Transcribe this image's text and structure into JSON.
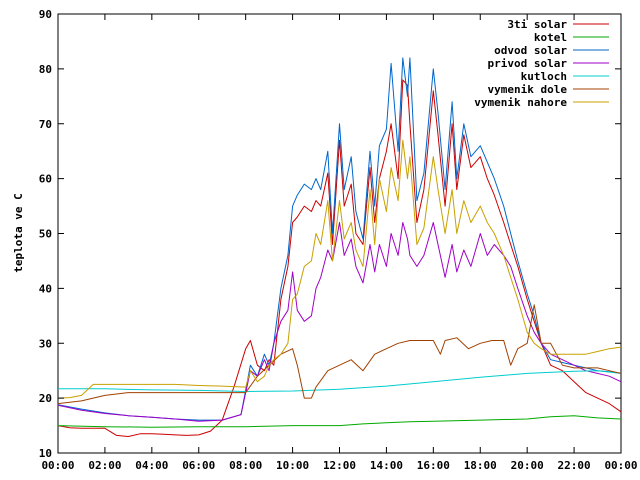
{
  "chart_data": {
    "type": "line",
    "title": "",
    "xlabel": "",
    "ylabel": "teplota ve C",
    "x_ticks": [
      "00:00",
      "02:00",
      "04:00",
      "06:00",
      "08:00",
      "10:00",
      "12:00",
      "14:00",
      "16:00",
      "18:00",
      "20:00",
      "22:00",
      "00:00"
    ],
    "xlim": [
      0,
      24
    ],
    "ylim": [
      10,
      90
    ],
    "y_ticks": [
      10,
      20,
      30,
      40,
      50,
      60,
      70,
      80,
      90
    ],
    "grid": false,
    "legend_position": "top-right",
    "series": [
      {
        "name": "3ti solar",
        "color": "#cc0000",
        "x": [
          0,
          0.5,
          1,
          1.5,
          2,
          2.5,
          3,
          3.5,
          4,
          4.5,
          5,
          5.5,
          6,
          6.5,
          7,
          7.5,
          8,
          8.2,
          8.5,
          8.8,
          9,
          9.2,
          9.5,
          9.8,
          10,
          10.2,
          10.5,
          10.8,
          11,
          11.2,
          11.5,
          11.7,
          12,
          12.2,
          12.5,
          12.7,
          13,
          13.3,
          13.5,
          13.7,
          14,
          14.2,
          14.5,
          14.7,
          14.9,
          15,
          15.3,
          15.6,
          16,
          16.2,
          16.5,
          16.8,
          17,
          17.3,
          17.6,
          18,
          18.3,
          18.6,
          19,
          19.3,
          19.6,
          20,
          20.3,
          20.6,
          21,
          21.5,
          22,
          22.5,
          23,
          23.5,
          24
        ],
        "y": [
          15,
          14.6,
          14.5,
          14.5,
          14.5,
          13.2,
          13,
          13.5,
          13.5,
          13.4,
          13.3,
          13.2,
          13.3,
          14,
          16,
          22,
          29,
          30.5,
          26,
          25,
          27,
          26,
          38,
          44,
          52,
          53,
          55,
          54,
          56,
          55,
          61,
          48,
          67,
          55,
          59,
          50,
          48,
          62,
          52,
          60,
          65,
          70,
          60,
          78,
          77,
          70,
          52,
          58,
          76,
          68,
          55,
          70,
          58,
          68,
          62,
          64,
          60,
          57,
          52,
          48,
          44,
          38,
          34,
          30,
          26,
          25,
          23,
          21,
          20,
          19,
          17.5
        ]
      },
      {
        "name": "kotel",
        "color": "#00aa00",
        "x": [
          0,
          2,
          4,
          6,
          8,
          10,
          12,
          13,
          14,
          15,
          16,
          18,
          20,
          21,
          22,
          23,
          24
        ],
        "y": [
          15,
          14.8,
          14.7,
          14.8,
          14.8,
          15,
          15,
          15.3,
          15.5,
          15.7,
          15.8,
          16,
          16.2,
          16.6,
          16.8,
          16.4,
          16.2
        ]
      },
      {
        "name": "odvod solar",
        "color": "#0066cc",
        "x": [
          0,
          1,
          2,
          3,
          4,
          5,
          6,
          7,
          7.8,
          8.2,
          8.5,
          8.8,
          9,
          9.2,
          9.5,
          9.8,
          10,
          10.2,
          10.5,
          10.8,
          11,
          11.2,
          11.5,
          11.7,
          12,
          12.2,
          12.5,
          12.7,
          13,
          13.3,
          13.5,
          13.7,
          14,
          14.2,
          14.5,
          14.7,
          14.9,
          15,
          15.3,
          15.6,
          16,
          16.2,
          16.5,
          16.8,
          17,
          17.3,
          17.6,
          18,
          18.3,
          18.6,
          19,
          19.3,
          19.6,
          20,
          20.3,
          20.6,
          21,
          21.5,
          22,
          22.5,
          23,
          23.5,
          24
        ],
        "y": [
          18.8,
          18,
          17.3,
          16.8,
          16.5,
          16.2,
          16,
          16,
          17,
          26,
          24,
          28,
          26,
          30,
          40,
          46,
          55,
          57,
          59,
          58,
          60,
          58,
          65,
          50,
          70,
          58,
          64,
          54,
          49,
          65,
          55,
          66,
          69,
          81,
          65,
          82,
          75,
          82,
          56,
          61,
          80,
          72,
          58,
          74,
          60,
          70,
          64,
          66,
          63,
          60,
          55,
          50,
          45,
          39,
          35,
          30,
          27,
          26.5,
          26,
          25.5,
          25,
          24.8,
          24.5
        ]
      },
      {
        "name": "privod solar",
        "color": "#a000c8",
        "x": [
          0,
          1,
          2,
          3,
          4,
          5,
          6,
          7,
          7.8,
          8.2,
          8.5,
          8.8,
          9,
          9.2,
          9.5,
          9.8,
          10,
          10.2,
          10.5,
          10.8,
          11,
          11.2,
          11.5,
          11.7,
          12,
          12.2,
          12.5,
          12.7,
          13,
          13.3,
          13.5,
          13.7,
          14,
          14.2,
          14.5,
          14.7,
          14.9,
          15,
          15.3,
          15.6,
          16,
          16.2,
          16.5,
          16.8,
          17,
          17.3,
          17.6,
          18,
          18.3,
          18.6,
          19,
          19.3,
          19.6,
          20,
          20.3,
          20.6,
          21,
          21.5,
          22,
          22.5,
          23,
          23.5,
          24
        ],
        "y": [
          18.7,
          17.8,
          17.2,
          16.8,
          16.5,
          16.2,
          15.8,
          16,
          17,
          25,
          24,
          27,
          25,
          30,
          34,
          36,
          43,
          36,
          34,
          35,
          40,
          42,
          47,
          45,
          52,
          46,
          49,
          44,
          41,
          48,
          43,
          48,
          44,
          50,
          46,
          52,
          49,
          46,
          44,
          46,
          52,
          48,
          42,
          48,
          43,
          47,
          44,
          50,
          46,
          48,
          46,
          44,
          40,
          35,
          32,
          30,
          28,
          27,
          26,
          25,
          24.5,
          24,
          23
        ]
      },
      {
        "name": "kutloch",
        "color": "#00cccc",
        "x": [
          0,
          2,
          4,
          6,
          8,
          10,
          12,
          14,
          16,
          18,
          20,
          22,
          23,
          24
        ],
        "y": [
          21.7,
          21.7,
          21.5,
          21.4,
          21.2,
          21.3,
          21.6,
          22.2,
          23,
          23.8,
          24.5,
          24.9,
          25,
          24.5
        ]
      },
      {
        "name": "vymenik dole",
        "color": "#a04000",
        "x": [
          0,
          1,
          2,
          3,
          4,
          5,
          6,
          7,
          8,
          8.5,
          9,
          9.5,
          10,
          10.2,
          10.5,
          10.8,
          11,
          11.5,
          12,
          12.5,
          13,
          13.5,
          14,
          14.5,
          15,
          15.5,
          16,
          16.3,
          16.5,
          17,
          17.5,
          18,
          18.5,
          19,
          19.3,
          19.6,
          20,
          20.3,
          20.6,
          21,
          21.5,
          22,
          22.5,
          23,
          23.5,
          24
        ],
        "y": [
          19,
          19.5,
          20.5,
          21,
          21,
          21,
          21,
          21,
          21,
          24,
          26,
          28,
          29,
          26,
          20,
          20,
          22,
          25,
          26,
          27,
          25,
          28,
          29,
          30,
          30.5,
          30.5,
          30.5,
          28,
          30.5,
          31,
          29,
          30,
          30.5,
          30.5,
          26,
          29,
          30,
          37,
          30,
          30,
          26,
          25.5,
          25.5,
          25.5,
          25,
          24.5
        ]
      },
      {
        "name": "vymenik nahore",
        "color": "#c8a000",
        "x": [
          0,
          0.5,
          1,
          1.5,
          2,
          3,
          4,
          5,
          6,
          7,
          8,
          8.2,
          8.5,
          8.8,
          9,
          9.2,
          9.5,
          9.8,
          10,
          10.2,
          10.5,
          10.8,
          11,
          11.2,
          11.5,
          11.7,
          12,
          12.2,
          12.5,
          12.7,
          13,
          13.3,
          13.5,
          13.7,
          14,
          14.2,
          14.5,
          14.7,
          14.9,
          15,
          15.3,
          15.6,
          16,
          16.2,
          16.5,
          16.8,
          17,
          17.3,
          17.6,
          18,
          18.3,
          18.6,
          19,
          19.3,
          19.6,
          20,
          20.3,
          20.6,
          21,
          21.5,
          22,
          22.5,
          23,
          23.5,
          24
        ],
        "y": [
          20,
          20.1,
          20.5,
          22.5,
          22.5,
          22.5,
          22.5,
          22.5,
          22.3,
          22.2,
          22,
          25,
          23,
          24,
          26,
          27,
          28,
          30,
          38,
          39,
          44,
          45,
          50,
          48,
          56,
          45,
          56,
          49,
          52,
          47,
          44,
          58,
          48,
          60,
          54,
          62,
          56,
          67,
          60,
          64,
          48,
          51,
          64,
          58,
          50,
          58,
          50,
          56,
          52,
          55,
          52,
          50,
          46,
          42,
          38,
          32,
          30,
          29,
          28,
          28,
          28,
          28,
          28.5,
          29,
          29.3
        ]
      }
    ]
  }
}
